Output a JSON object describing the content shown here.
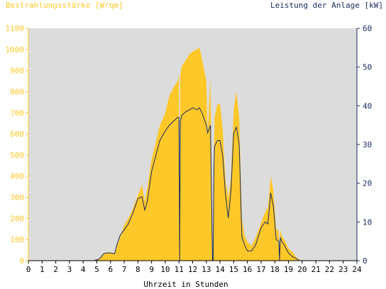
{
  "chart_data": {
    "type": "area",
    "ylabel_left": "Bestrahlungsstärke [W/qm]",
    "ylabel_right": "Leistung der Anlage [kW]",
    "xlabel": "Uhrzeit in Stunden",
    "xlim": [
      0,
      24
    ],
    "ylim_left": [
      0,
      1100
    ],
    "ylim_right": [
      0,
      60
    ],
    "x_ticks": [
      "0",
      "1",
      "2",
      "3",
      "4",
      "5",
      "6",
      "7",
      "8",
      "9",
      "10",
      "11",
      "12",
      "13",
      "14",
      "15",
      "16",
      "17",
      "18",
      "19",
      "20",
      "21",
      "22",
      "23",
      "24"
    ],
    "y_ticks_left": [
      "0",
      "100",
      "200",
      "300",
      "400",
      "500",
      "600",
      "700",
      "800",
      "900",
      "1000",
      "1100"
    ],
    "y_ticks_right": [
      "0",
      "10",
      "20",
      "30",
      "40",
      "50",
      "60"
    ],
    "grid": true,
    "colors": {
      "irradiance": "#ffc829",
      "power": "#1a2a5e",
      "background": "#dcdcdc"
    },
    "series": [
      {
        "kind": "area",
        "axis": "left",
        "x": [
          0,
          4.8,
          5.2,
          5.5,
          5.7,
          6.0,
          6.3,
          6.5,
          6.7,
          7.0,
          7.3,
          7.6,
          8.0,
          8.3,
          8.5,
          8.7,
          9.0,
          9.3,
          9.6,
          10.0,
          10.3,
          10.6,
          10.9,
          11.0,
          11.05,
          11.1,
          11.2,
          11.5,
          11.8,
          12.0,
          12.3,
          12.5,
          12.7,
          13.0,
          13.1,
          13.3,
          13.45,
          13.5,
          13.55,
          13.6,
          13.8,
          14.0,
          14.2,
          14.4,
          14.6,
          14.8,
          15.0,
          15.2,
          15.4,
          15.6,
          15.8,
          16.0,
          16.3,
          16.6,
          17.0,
          17.3,
          17.5,
          17.7,
          17.9,
          18.1,
          18.3,
          18.35,
          18.4,
          18.5,
          18.7,
          19.0,
          19.3,
          19.6,
          19.8,
          20.0,
          20.3,
          24
        ],
        "values": [
          0,
          0,
          8,
          30,
          38,
          40,
          35,
          75,
          110,
          170,
          200,
          240,
          310,
          360,
          280,
          350,
          480,
          560,
          640,
          700,
          780,
          820,
          850,
          880,
          0,
          880,
          920,
          950,
          980,
          990,
          1000,
          1010,
          950,
          850,
          600,
          870,
          0,
          0,
          500,
          680,
          740,
          740,
          620,
          380,
          300,
          390,
          720,
          800,
          680,
          200,
          120,
          90,
          70,
          110,
          180,
          230,
          250,
          400,
          330,
          150,
          140,
          0,
          150,
          120,
          100,
          60,
          40,
          15,
          5,
          0,
          0,
          0
        ]
      },
      {
        "kind": "line",
        "axis": "right",
        "x": [
          0,
          4.8,
          5.2,
          5.5,
          5.7,
          6.0,
          6.3,
          6.5,
          6.7,
          7.0,
          7.3,
          7.6,
          8.0,
          8.3,
          8.5,
          8.7,
          9.0,
          9.3,
          9.6,
          10.0,
          10.3,
          10.6,
          10.9,
          11.0,
          11.05,
          11.1,
          11.2,
          11.5,
          11.8,
          12.0,
          12.3,
          12.5,
          12.7,
          13.0,
          13.1,
          13.3,
          13.45,
          13.5,
          13.55,
          13.6,
          13.8,
          14.0,
          14.2,
          14.4,
          14.6,
          14.8,
          15.0,
          15.2,
          15.4,
          15.6,
          15.8,
          16.0,
          16.3,
          16.6,
          17.0,
          17.3,
          17.5,
          17.7,
          17.9,
          18.1,
          18.3,
          18.35,
          18.4,
          18.5,
          18.7,
          19.0,
          19.3,
          19.6,
          19.8,
          20.0,
          20.3,
          24
        ],
        "values": [
          0,
          0,
          0.5,
          1.8,
          2.0,
          2.0,
          1.8,
          4.5,
          6.5,
          8.0,
          9.5,
          12.0,
          16.0,
          16.5,
          13.0,
          15.5,
          23.0,
          27.0,
          31.0,
          33.5,
          35.0,
          36.0,
          37.0,
          37.0,
          0,
          36.0,
          37.5,
          38.5,
          39.0,
          39.5,
          39.0,
          39.5,
          38.0,
          35.0,
          33.0,
          35.0,
          0,
          0,
          24.0,
          29.5,
          31.0,
          31.0,
          27.0,
          17.0,
          11.0,
          18.0,
          33.0,
          34.5,
          30.0,
          6.0,
          4.0,
          2.5,
          2.5,
          4.0,
          8.5,
          10.0,
          9.5,
          17.5,
          14.0,
          5.5,
          5.0,
          0,
          6.0,
          5.0,
          4.0,
          2.0,
          1.0,
          0.5,
          0,
          0,
          0,
          0
        ]
      }
    ]
  }
}
